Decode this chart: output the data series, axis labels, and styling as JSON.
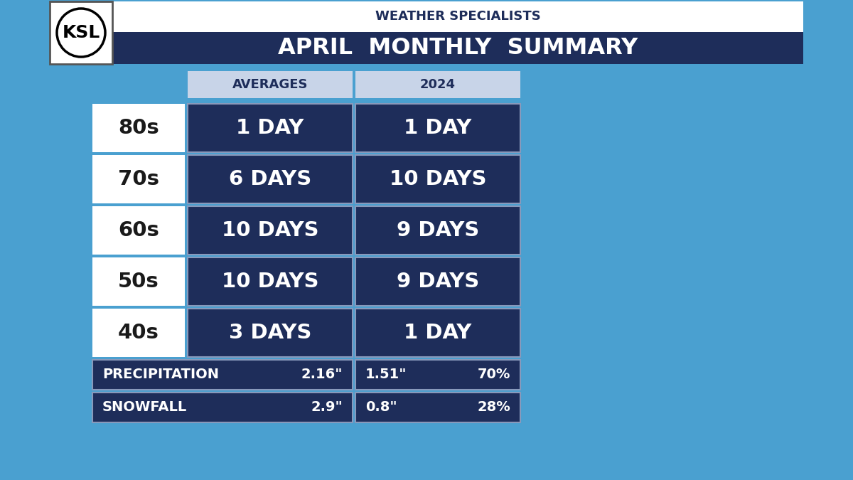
{
  "title_sub": "WEATHER SPECIALISTS",
  "title_main": "APRIL  MONTHLY  SUMMARY",
  "header_bg": "#1e2d5a",
  "header_sub_bg": "#ffffff",
  "ksl_logo_text": "KSL",
  "col_headers": [
    "AVERAGES",
    "2024"
  ],
  "col_header_bg": "#c8d4e8",
  "col_header_text_color": "#1e2d5a",
  "row_labels": [
    "80s",
    "70s",
    "60s",
    "50s",
    "40s"
  ],
  "row_label_bg": "#ffffff",
  "row_label_text": "#1a1a1a",
  "cell_bg": "#1e2d5a",
  "cell_text": "#ffffff",
  "cell_border": "#8899bb",
  "averages_data": [
    "1 DAY",
    "6 DAYS",
    "10 DAYS",
    "10 DAYS",
    "3 DAYS"
  ],
  "data_2024": [
    "1 DAY",
    "10 DAYS",
    "9 DAYS",
    "9 DAYS",
    "1 DAY"
  ],
  "precip_label": "PRECIPITATION",
  "precip_avg": "2.16\"",
  "precip_2024": "1.51\"",
  "precip_pct": "70%",
  "snow_label": "SNOWFALL",
  "snow_avg": "2.9\"",
  "snow_2024": "0.8\"",
  "snow_pct": "28%",
  "bg_color": "#4aa0d0"
}
